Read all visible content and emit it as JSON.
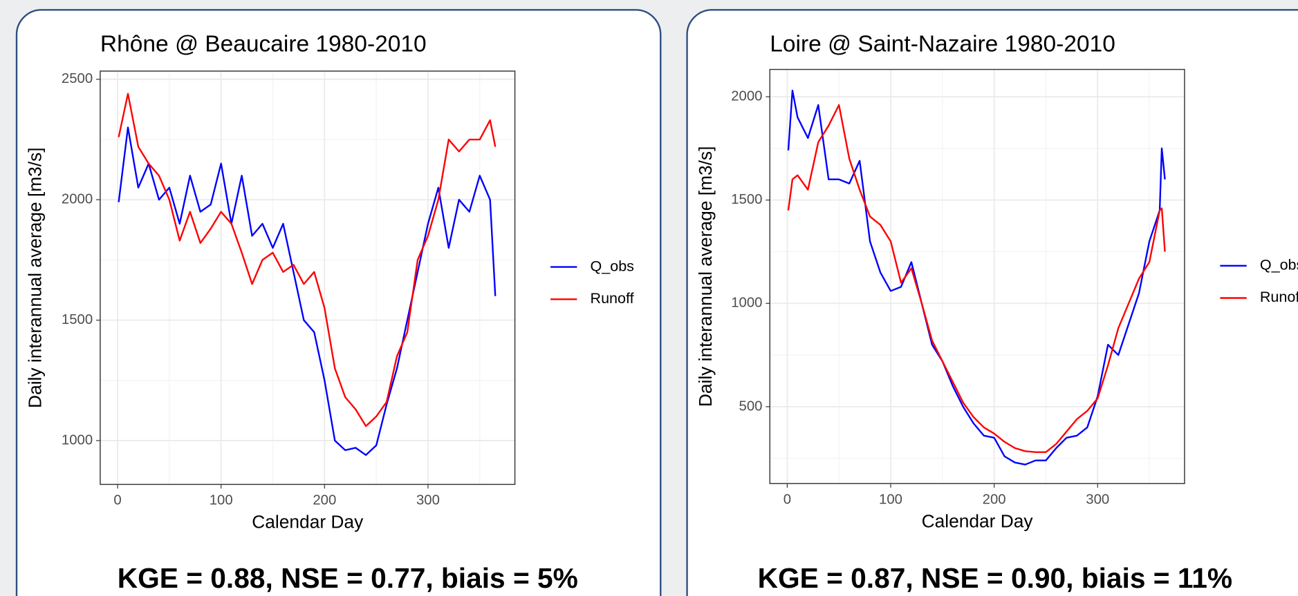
{
  "chart_data": [
    {
      "type": "line",
      "title": "Rhône @ Beaucaire 1980-2010",
      "x_label": "Calendar Day",
      "y_label": "Daily interannual average [m3/s]",
      "annotation": "KGE = 0.88, NSE = 0.77, biais = 5%",
      "x": [
        1,
        10,
        20,
        30,
        40,
        50,
        60,
        70,
        80,
        90,
        100,
        110,
        120,
        130,
        140,
        150,
        160,
        170,
        180,
        190,
        200,
        210,
        220,
        230,
        240,
        250,
        260,
        270,
        280,
        290,
        300,
        310,
        320,
        330,
        340,
        350,
        360,
        365
      ],
      "series": [
        {
          "name": "Q_obs",
          "color": "#0000ff",
          "values": [
            1990,
            2300,
            2050,
            2150,
            2000,
            2050,
            1900,
            2100,
            1950,
            1980,
            2150,
            1900,
            2100,
            1850,
            1900,
            1800,
            1900,
            1700,
            1500,
            1450,
            1250,
            1000,
            960,
            970,
            940,
            980,
            1150,
            1300,
            1500,
            1700,
            1900,
            2050,
            1800,
            2000,
            1950,
            2100,
            2000,
            1600
          ]
        },
        {
          "name": "Runoff",
          "color": "#ff0000",
          "values": [
            2260,
            2440,
            2220,
            2150,
            2100,
            2000,
            1830,
            1950,
            1820,
            1880,
            1950,
            1900,
            1780,
            1650,
            1750,
            1780,
            1700,
            1730,
            1650,
            1700,
            1550,
            1300,
            1180,
            1130,
            1060,
            1100,
            1160,
            1350,
            1450,
            1750,
            1850,
            2000,
            2250,
            2200,
            2250,
            2250,
            2330,
            2220
          ]
        }
      ],
      "xlim": [
        -16.8,
        384
      ],
      "ylim": [
        818,
        2534
      ],
      "xticks": [
        0,
        100,
        200,
        300
      ],
      "yticks": [
        1000,
        1500,
        2000,
        2500
      ],
      "grid": true,
      "legend": "right"
    },
    {
      "type": "line",
      "title": "Loire @ Saint-Nazaire 1980-2010",
      "x_label": "Calendar Day",
      "y_label": "Daily interannual average [m3/s]",
      "annotation": "KGE = 0.87, NSE = 0.90, biais = 11%",
      "x": [
        1,
        5,
        10,
        20,
        30,
        40,
        50,
        60,
        70,
        80,
        90,
        100,
        110,
        120,
        130,
        140,
        150,
        160,
        170,
        180,
        190,
        200,
        210,
        220,
        230,
        240,
        250,
        260,
        270,
        280,
        290,
        300,
        310,
        320,
        330,
        340,
        350,
        360,
        362,
        365
      ],
      "series": [
        {
          "name": "Q_obs",
          "color": "#0000ff",
          "values": [
            1740,
            2030,
            1900,
            1800,
            1960,
            1600,
            1600,
            1580,
            1690,
            1300,
            1150,
            1060,
            1080,
            1200,
            1000,
            800,
            720,
            600,
            500,
            420,
            360,
            350,
            260,
            230,
            220,
            240,
            240,
            300,
            350,
            360,
            400,
            550,
            800,
            750,
            900,
            1050,
            1300,
            1450,
            1750,
            1600
          ]
        },
        {
          "name": "Runoff",
          "color": "#ff0000",
          "values": [
            1450,
            1600,
            1620,
            1550,
            1780,
            1860,
            1960,
            1700,
            1550,
            1420,
            1380,
            1300,
            1100,
            1170,
            1000,
            820,
            720,
            620,
            520,
            450,
            400,
            370,
            330,
            300,
            285,
            280,
            280,
            320,
            380,
            440,
            480,
            540,
            700,
            880,
            1000,
            1120,
            1200,
            1450,
            1460,
            1250
          ]
        }
      ],
      "xlim": [
        -16.8,
        384
      ],
      "ylim": [
        128,
        2132
      ],
      "xticks": [
        0,
        100,
        200,
        300
      ],
      "yticks": [
        500,
        1000,
        1500,
        2000
      ],
      "grid": true,
      "legend": "right"
    }
  ]
}
